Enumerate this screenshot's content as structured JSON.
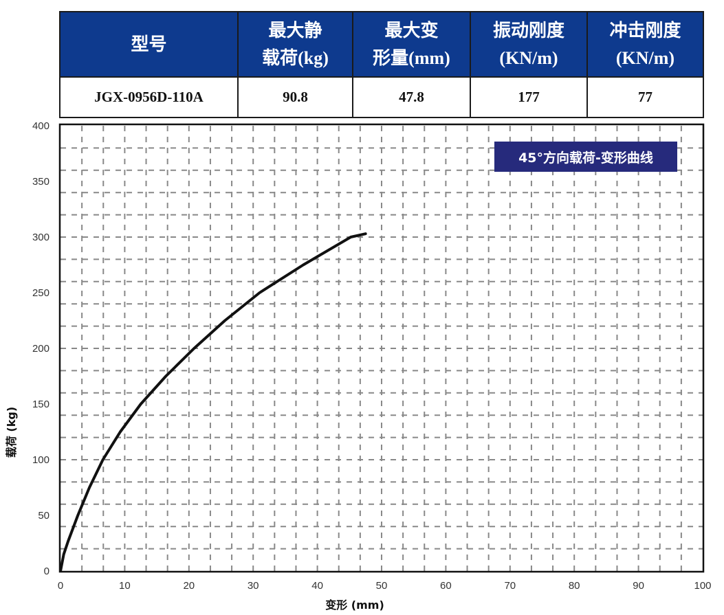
{
  "table": {
    "headers": [
      [
        "型号"
      ],
      [
        "最大静",
        "载荷(kg)"
      ],
      [
        "最大变",
        "形量(mm)"
      ],
      [
        "振动刚度",
        "(KN/m)"
      ],
      [
        "冲击刚度",
        "(KN/m)"
      ]
    ],
    "row": [
      "JGX-0956D-110A",
      "90.8",
      "47.8",
      "177",
      "77"
    ],
    "header_bg": "#0e3a8e"
  },
  "chart_data": {
    "type": "line",
    "title": "45°方向载荷-变形曲线",
    "xlabel": "变形 (mm)",
    "ylabel": "载荷 (kg)",
    "xlim": [
      0,
      100
    ],
    "ylim": [
      0,
      400
    ],
    "xticks": [
      "0",
      "10",
      "20",
      "30",
      "40",
      "50",
      "60",
      "70",
      "80",
      "90",
      "100"
    ],
    "yticks": [
      "0",
      "50",
      "100",
      "150",
      "200",
      "250",
      "300",
      "350",
      "400"
    ],
    "grid": true,
    "legend": "none",
    "title_box_color": "#262a7c",
    "series": [
      {
        "color": "#111111",
        "x": [
          0,
          0.5,
          1.2,
          2.7,
          4.5,
          6.6,
          9.3,
          12.5,
          16.4,
          20.8,
          25.6,
          31.0,
          37.8,
          45.2,
          47.5
        ],
        "y": [
          0,
          15,
          27,
          50,
          75,
          100,
          125,
          150,
          175,
          200,
          225,
          250,
          275,
          300,
          303
        ]
      }
    ]
  }
}
